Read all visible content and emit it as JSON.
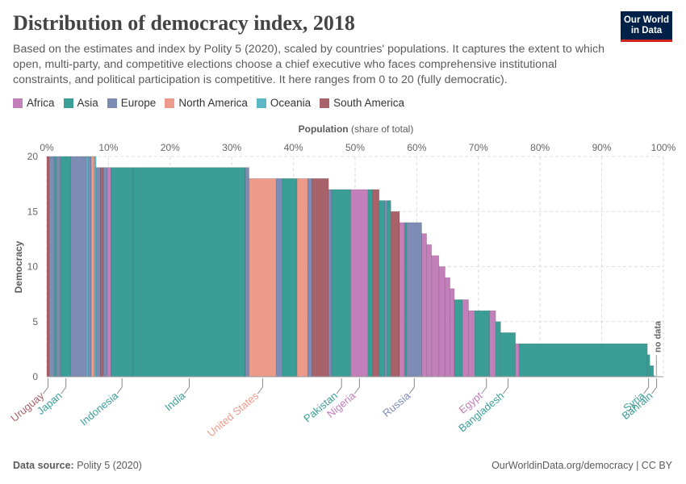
{
  "title": "Distribution of democracy index, 2018",
  "subtitle": "Based on the estimates and index by Polity 5 (2020), scaled by countries' populations. It captures the extent to which open, multi-party, and competitive elections choose a chief executive who faces comprehensive institutional constraints, and political participation is competitive. It here ranges from 0 to 20 (fully democratic).",
  "logo": {
    "line1": "Our World",
    "line2": "in Data"
  },
  "legend": [
    {
      "name": "Africa",
      "color": "#c27fba"
    },
    {
      "name": "Asia",
      "color": "#3a9e97"
    },
    {
      "name": "Europe",
      "color": "#7d8cb4"
    },
    {
      "name": "North America",
      "color": "#ee9a8a"
    },
    {
      "name": "Oceania",
      "color": "#5bb8c4"
    },
    {
      "name": "South America",
      "color": "#a8636a"
    }
  ],
  "footer": {
    "source_label": "Data source:",
    "source": "Polity 5 (2020)",
    "url": "OurWorldinData.org/democracy | CC BY"
  },
  "chart_data": {
    "type": "bar",
    "xlabel_bold": "Population",
    "xlabel_rest": " (share of total)",
    "ylabel": "Democracy",
    "xlim": [
      0,
      100
    ],
    "ylim": [
      0,
      20
    ],
    "x_ticks": [
      "0%",
      "10%",
      "20%",
      "30%",
      "40%",
      "50%",
      "60%",
      "70%",
      "80%",
      "90%",
      "100%"
    ],
    "y_ticks": [
      "0",
      "5",
      "10",
      "15",
      "20"
    ],
    "no_data_label": "no data",
    "no_data_range": [
      98.6,
      100
    ],
    "segments": [
      {
        "region": "South America",
        "start": 0.0,
        "end": 0.4,
        "value": 20
      },
      {
        "region": "Europe",
        "start": 0.4,
        "end": 1.2,
        "value": 20
      },
      {
        "region": "Asia",
        "start": 1.2,
        "end": 1.6,
        "value": 20
      },
      {
        "region": "Europe",
        "start": 1.6,
        "end": 2.2,
        "value": 20
      },
      {
        "region": "Asia",
        "start": 2.2,
        "end": 3.9,
        "value": 20
      },
      {
        "region": "Europe",
        "start": 3.9,
        "end": 6.4,
        "value": 20
      },
      {
        "region": "Oceania",
        "start": 6.4,
        "end": 6.7,
        "value": 20
      },
      {
        "region": "Europe",
        "start": 6.7,
        "end": 7.2,
        "value": 20
      },
      {
        "region": "North America",
        "start": 7.2,
        "end": 7.7,
        "value": 20
      },
      {
        "region": "Oceania",
        "start": 7.7,
        "end": 8.0,
        "value": 20
      },
      {
        "region": "Europe",
        "start": 8.0,
        "end": 8.7,
        "value": 19
      },
      {
        "region": "South America",
        "start": 8.7,
        "end": 9.2,
        "value": 19
      },
      {
        "region": "Europe",
        "start": 9.2,
        "end": 9.8,
        "value": 19
      },
      {
        "region": "Africa",
        "start": 9.8,
        "end": 10.4,
        "value": 19
      },
      {
        "region": "Asia",
        "start": 10.4,
        "end": 14.0,
        "value": 19
      },
      {
        "region": "Asia",
        "start": 14.0,
        "end": 32.2,
        "value": 19
      },
      {
        "region": "Europe",
        "start": 32.2,
        "end": 32.8,
        "value": 19
      },
      {
        "region": "North America",
        "start": 32.8,
        "end": 37.2,
        "value": 18
      },
      {
        "region": "Europe",
        "start": 37.2,
        "end": 38.2,
        "value": 18
      },
      {
        "region": "Asia",
        "start": 38.2,
        "end": 40.6,
        "value": 18
      },
      {
        "region": "North America",
        "start": 40.6,
        "end": 42.3,
        "value": 18
      },
      {
        "region": "Europe",
        "start": 42.3,
        "end": 43.0,
        "value": 18
      },
      {
        "region": "South America",
        "start": 43.0,
        "end": 45.7,
        "value": 18
      },
      {
        "region": "Europe",
        "start": 45.7,
        "end": 46.2,
        "value": 17
      },
      {
        "region": "Asia",
        "start": 46.2,
        "end": 49.3,
        "value": 17
      },
      {
        "region": "Africa",
        "start": 49.3,
        "end": 52.1,
        "value": 17
      },
      {
        "region": "Asia",
        "start": 52.1,
        "end": 52.8,
        "value": 17
      },
      {
        "region": "South America",
        "start": 52.8,
        "end": 53.9,
        "value": 17
      },
      {
        "region": "Asia",
        "start": 53.9,
        "end": 54.8,
        "value": 16
      },
      {
        "region": "Europe",
        "start": 54.8,
        "end": 55.2,
        "value": 16
      },
      {
        "region": "Asia",
        "start": 55.2,
        "end": 55.8,
        "value": 16
      },
      {
        "region": "South America",
        "start": 55.8,
        "end": 57.2,
        "value": 15
      },
      {
        "region": "Africa",
        "start": 57.2,
        "end": 58.0,
        "value": 14
      },
      {
        "region": "Asia",
        "start": 58.0,
        "end": 58.4,
        "value": 14
      },
      {
        "region": "Europe",
        "start": 58.4,
        "end": 60.8,
        "value": 14
      },
      {
        "region": "Africa",
        "start": 60.8,
        "end": 61.6,
        "value": 13
      },
      {
        "region": "Africa",
        "start": 61.6,
        "end": 62.4,
        "value": 12
      },
      {
        "region": "Africa",
        "start": 62.4,
        "end": 63.6,
        "value": 11
      },
      {
        "region": "Africa",
        "start": 63.6,
        "end": 64.6,
        "value": 10
      },
      {
        "region": "Africa",
        "start": 64.6,
        "end": 65.4,
        "value": 9
      },
      {
        "region": "Africa",
        "start": 65.4,
        "end": 66.1,
        "value": 8
      },
      {
        "region": "Asia",
        "start": 66.1,
        "end": 67.4,
        "value": 7
      },
      {
        "region": "Africa",
        "start": 67.4,
        "end": 68.4,
        "value": 7
      },
      {
        "region": "Africa",
        "start": 68.4,
        "end": 69.4,
        "value": 6
      },
      {
        "region": "Asia",
        "start": 69.4,
        "end": 71.8,
        "value": 6
      },
      {
        "region": "Africa",
        "start": 71.8,
        "end": 72.8,
        "value": 6
      },
      {
        "region": "Asia",
        "start": 72.8,
        "end": 73.6,
        "value": 5
      },
      {
        "region": "Asia",
        "start": 73.6,
        "end": 76.0,
        "value": 4
      },
      {
        "region": "Africa",
        "start": 76.0,
        "end": 76.6,
        "value": 3
      },
      {
        "region": "Asia",
        "start": 76.6,
        "end": 97.4,
        "value": 3
      },
      {
        "region": "Asia",
        "start": 97.4,
        "end": 97.8,
        "value": 2
      },
      {
        "region": "Asia",
        "start": 97.8,
        "end": 98.4,
        "value": 1
      },
      {
        "region": "Asia",
        "start": 98.4,
        "end": 98.6,
        "value": 0.1
      }
    ],
    "country_labels": [
      {
        "name": "Uruguay",
        "region": "South America",
        "x": 0.2
      },
      {
        "name": "Japan",
        "region": "Asia",
        "x": 3.1
      },
      {
        "name": "Indonesia",
        "region": "Asia",
        "x": 12.2
      },
      {
        "name": "India",
        "region": "Asia",
        "x": 23.1
      },
      {
        "name": "United States",
        "region": "North America",
        "x": 35.0
      },
      {
        "name": "Pakistan",
        "region": "Asia",
        "x": 47.8
      },
      {
        "name": "Nigeria",
        "region": "Africa",
        "x": 50.7
      },
      {
        "name": "Russia",
        "region": "Europe",
        "x": 59.6
      },
      {
        "name": "Egypt",
        "region": "Africa",
        "x": 71.3
      },
      {
        "name": "Bangladesh",
        "region": "Asia",
        "x": 74.8
      },
      {
        "name": "Syria",
        "region": "Asia",
        "x": 97.6
      },
      {
        "name": "Bahrain",
        "region": "Asia",
        "x": 98.9
      }
    ]
  }
}
